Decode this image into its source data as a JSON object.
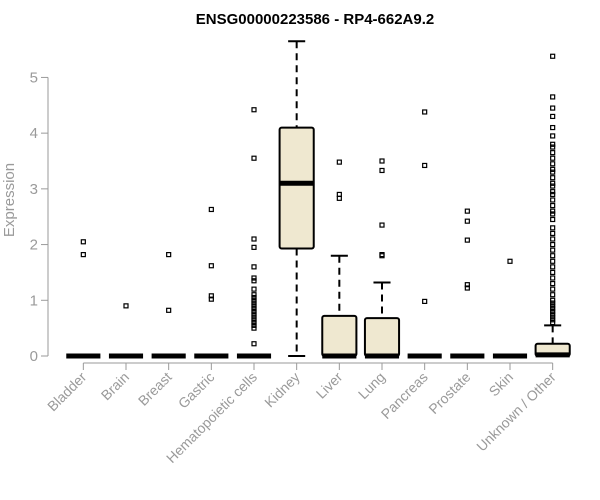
{
  "chart_data": {
    "type": "boxplot",
    "title": "ENSG00000223586 - RP4-662A9.2",
    "xlabel": "",
    "ylabel": "Expression",
    "ylim": [
      0,
      5.6
    ],
    "yticks": [
      0,
      1,
      2,
      3,
      4,
      5
    ],
    "grid": false,
    "colors": {
      "box_fill": "#efe8d0",
      "stroke": "#000000",
      "axis": "#9a9a9a",
      "text": "#9a9a9a"
    },
    "categories": [
      "Bladder",
      "Brain",
      "Breast",
      "Gastric",
      "Hematopoietic cells",
      "Kidney",
      "Liver",
      "Lung",
      "Pancreas",
      "Prostate",
      "Skin",
      "Unknown / Other"
    ],
    "boxes": [
      {
        "name": "Bladder",
        "min": 0,
        "q1": 0,
        "median": 0,
        "q3": 0,
        "max": 0,
        "outliers": [
          2.05,
          1.82
        ]
      },
      {
        "name": "Brain",
        "min": 0,
        "q1": 0,
        "median": 0,
        "q3": 0,
        "max": 0,
        "outliers": [
          0.9
        ]
      },
      {
        "name": "Breast",
        "min": 0,
        "q1": 0,
        "median": 0,
        "q3": 0,
        "max": 0,
        "outliers": [
          1.82,
          0.82
        ]
      },
      {
        "name": "Gastric",
        "min": 0,
        "q1": 0,
        "median": 0,
        "q3": 0,
        "max": 0,
        "outliers": [
          2.63,
          1.62,
          1.08,
          1.02
        ]
      },
      {
        "name": "Hematopoietic cells",
        "min": 0,
        "q1": 0,
        "median": 0,
        "q3": 0,
        "max": 0,
        "outliers": [
          4.42,
          3.55,
          2.1,
          1.95,
          1.6,
          1.4,
          1.35,
          1.2,
          1.1,
          1.05,
          1.0,
          0.95,
          0.9,
          0.85,
          0.8,
          0.75,
          0.7,
          0.65,
          0.6,
          0.55,
          0.5,
          0.22
        ]
      },
      {
        "name": "Kidney",
        "min": 0,
        "q1": 1.93,
        "median": 3.1,
        "q3": 4.1,
        "max": 5.65,
        "outliers": []
      },
      {
        "name": "Liver",
        "min": 0,
        "q1": 0,
        "median": 0,
        "q3": 0.72,
        "max": 1.8,
        "outliers": [
          3.48,
          2.9,
          2.83
        ]
      },
      {
        "name": "Lung",
        "min": 0,
        "q1": 0,
        "median": 0,
        "q3": 0.68,
        "max": 1.32,
        "outliers": [
          3.5,
          3.33,
          2.35,
          1.82,
          1.8
        ]
      },
      {
        "name": "Pancreas",
        "min": 0,
        "q1": 0,
        "median": 0,
        "q3": 0,
        "max": 0,
        "outliers": [
          4.38,
          3.42,
          0.98
        ]
      },
      {
        "name": "Prostate",
        "min": 0,
        "q1": 0,
        "median": 0,
        "q3": 0,
        "max": 0,
        "outliers": [
          2.6,
          2.42,
          2.08,
          1.28,
          1.22
        ]
      },
      {
        "name": "Skin",
        "min": 0,
        "q1": 0,
        "median": 0,
        "q3": 0,
        "max": 0,
        "outliers": [
          1.7
        ]
      },
      {
        "name": "Unknown / Other",
        "min": 0,
        "q1": 0,
        "median": 0.02,
        "q3": 0.22,
        "max": 0.55,
        "outliers": [
          5.38,
          4.65,
          4.45,
          4.3,
          4.1,
          3.95,
          3.8,
          3.75,
          3.65,
          3.55,
          3.45,
          3.35,
          3.3,
          3.2,
          3.1,
          3.05,
          2.95,
          2.9,
          2.8,
          2.7,
          2.6,
          2.55,
          2.45,
          2.3,
          2.2,
          2.1,
          2.0,
          1.9,
          1.8,
          1.7,
          1.6,
          1.5,
          1.4,
          1.3,
          1.2,
          1.1,
          1.0,
          0.95,
          0.9,
          0.85,
          0.8,
          0.75,
          0.7,
          0.65,
          0.6
        ]
      }
    ]
  }
}
